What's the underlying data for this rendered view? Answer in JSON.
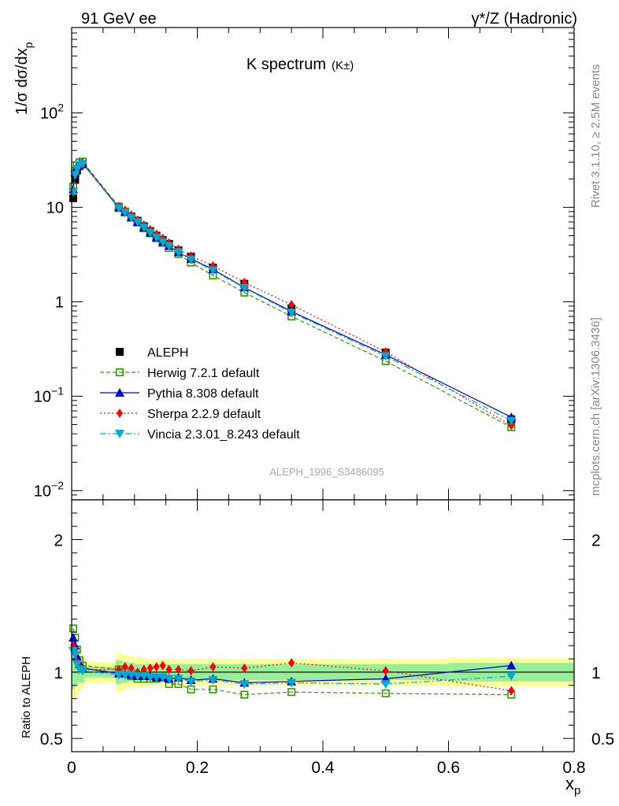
{
  "header": {
    "left": "91 GeV ee",
    "right": "γ*/Z (Hadronic)"
  },
  "side_text": {
    "top": "Rivet 3.1.10, ≥ 2.5M events",
    "bottom": "mcplots.cern.ch [arXiv:1306.3436]"
  },
  "analysis_label": "ALEPH_1996_S3486095",
  "chart_data": [
    {
      "type": "scatter",
      "title": "K spectrum",
      "title_suffix": "(K±)",
      "ylabel": "1/σ dσ/dx",
      "ylabel_sub": "p",
      "yscale": "log",
      "ylim": [
        0.008,
        800
      ],
      "xlim": [
        0,
        0.8
      ],
      "y_tick_labels": [
        {
          "value": 100,
          "base": "10",
          "exp": "2"
        },
        {
          "value": 10,
          "base": "10",
          "exp": ""
        },
        {
          "value": 1,
          "base": "1",
          "exp": ""
        },
        {
          "value": 0.1,
          "base": "10",
          "exp": "−1"
        },
        {
          "value": 0.01,
          "base": "10",
          "exp": "−2"
        }
      ],
      "legend_position": "bottom-left",
      "series": [
        {
          "name": "ALEPH",
          "color": "#000000",
          "marker": "square",
          "dash": "none",
          "x": [
            0.0025,
            0.0055,
            0.0085,
            0.0125,
            0.0175,
            0.075,
            0.085,
            0.095,
            0.105,
            0.115,
            0.125,
            0.135,
            0.145,
            0.155,
            0.17,
            0.19,
            0.225,
            0.275,
            0.35,
            0.5,
            0.7
          ],
          "y": [
            12.5,
            19.5,
            24.5,
            27.5,
            28.5,
            10.0,
            9.0,
            8.0,
            7.2,
            6.3,
            5.6,
            5.0,
            4.5,
            4.1,
            3.5,
            3.0,
            2.3,
            1.55,
            0.85,
            0.29,
            0.057
          ]
        },
        {
          "name": "Herwig 7.2.1 default",
          "color": "#339900",
          "marker": "open-square",
          "dash": "5,3",
          "x": [
            0.0025,
            0.0055,
            0.0085,
            0.0125,
            0.0175,
            0.075,
            0.085,
            0.095,
            0.105,
            0.115,
            0.125,
            0.135,
            0.145,
            0.155,
            0.17,
            0.19,
            0.225,
            0.275,
            0.35,
            0.5,
            0.7
          ],
          "y": [
            16.5,
            24.5,
            28.0,
            30.0,
            30.5,
            10.2,
            9.0,
            7.8,
            6.9,
            6.0,
            5.3,
            4.7,
            4.2,
            3.7,
            3.2,
            2.6,
            1.9,
            1.25,
            0.7,
            0.235,
            0.047
          ]
        },
        {
          "name": "Pythia 8.308 default",
          "color": "#0000cc",
          "marker": "triangle-up",
          "dash": "none",
          "x": [
            0.0025,
            0.0055,
            0.0085,
            0.0125,
            0.0175,
            0.075,
            0.085,
            0.095,
            0.105,
            0.115,
            0.125,
            0.135,
            0.145,
            0.155,
            0.17,
            0.19,
            0.225,
            0.275,
            0.35,
            0.5,
            0.7
          ],
          "y": [
            15.5,
            23.5,
            27.0,
            29.0,
            29.5,
            9.9,
            8.9,
            7.8,
            7.0,
            6.1,
            5.4,
            4.8,
            4.3,
            3.9,
            3.35,
            2.85,
            2.2,
            1.42,
            0.79,
            0.275,
            0.06
          ]
        },
        {
          "name": "Sherpa 2.2.9 default",
          "color": "#ff0000",
          "marker": "diamond",
          "dash": "2,3",
          "x": [
            0.0025,
            0.0055,
            0.0085,
            0.0125,
            0.0175,
            0.075,
            0.085,
            0.095,
            0.105,
            0.115,
            0.125,
            0.135,
            0.145,
            0.155,
            0.17,
            0.19,
            0.225,
            0.275,
            0.35,
            0.5,
            0.7
          ],
          "y": [
            15.0,
            22.5,
            26.0,
            28.5,
            29.0,
            10.2,
            9.3,
            8.3,
            7.3,
            6.5,
            5.8,
            5.2,
            4.7,
            4.2,
            3.6,
            3.05,
            2.4,
            1.6,
            0.93,
            0.295,
            0.049
          ]
        },
        {
          "name": "Vincia 2.3.01_8.243 default",
          "color": "#00aacc",
          "marker": "triangle-down",
          "dash": "8,3,2,3",
          "x": [
            0.0025,
            0.0055,
            0.0085,
            0.0125,
            0.0175,
            0.075,
            0.085,
            0.095,
            0.105,
            0.115,
            0.125,
            0.135,
            0.145,
            0.155,
            0.17,
            0.19,
            0.225,
            0.275,
            0.35,
            0.5,
            0.7
          ],
          "y": [
            14.5,
            22.0,
            25.5,
            28.0,
            28.8,
            9.8,
            8.8,
            7.8,
            7.0,
            6.1,
            5.4,
            4.8,
            4.3,
            3.9,
            3.35,
            2.8,
            2.15,
            1.4,
            0.77,
            0.265,
            0.055
          ]
        }
      ]
    },
    {
      "type": "line",
      "ylabel": "Ratio to ALEPH",
      "xlabel": "x",
      "xlabel_sub": "p",
      "ylim": [
        0.4,
        2.3
      ],
      "xlim": [
        0,
        0.8
      ],
      "x_ticks": [
        0,
        0.2,
        0.4,
        0.6,
        0.8
      ],
      "x_tick_labels": [
        "0",
        "0.2",
        "0.4",
        "0.6",
        "0.8"
      ],
      "y_ticks": [
        0.5,
        1,
        2
      ],
      "y_tick_labels": [
        "0.5",
        "1",
        "2"
      ],
      "bands": {
        "edges": [
          0.0,
          0.005,
          0.01,
          0.015,
          0.02,
          0.07,
          0.08,
          0.09,
          0.1,
          0.12,
          0.15,
          0.2,
          0.3,
          0.4,
          0.6,
          0.8
        ],
        "inner": [
          [
            0.87,
            1.13
          ],
          [
            0.9,
            1.1
          ],
          [
            0.92,
            1.08
          ],
          [
            0.92,
            1.08
          ],
          [
            0.96,
            1.04
          ],
          [
            0.91,
            1.09
          ],
          [
            0.92,
            1.08
          ],
          [
            0.93,
            1.07
          ],
          [
            0.94,
            1.06
          ],
          [
            0.94,
            1.06
          ],
          [
            0.94,
            1.06
          ],
          [
            0.94,
            1.06
          ],
          [
            0.94,
            1.06
          ],
          [
            0.94,
            1.06
          ],
          [
            0.93,
            1.07
          ]
        ],
        "outer": [
          [
            0.8,
            1.2
          ],
          [
            0.82,
            1.18
          ],
          [
            0.86,
            1.14
          ],
          [
            0.88,
            1.12
          ],
          [
            0.92,
            1.08
          ],
          [
            0.85,
            1.15
          ],
          [
            0.87,
            1.13
          ],
          [
            0.88,
            1.12
          ],
          [
            0.89,
            1.11
          ],
          [
            0.9,
            1.1
          ],
          [
            0.9,
            1.1
          ],
          [
            0.9,
            1.1
          ],
          [
            0.9,
            1.1
          ],
          [
            0.9,
            1.1
          ],
          [
            0.89,
            1.11
          ]
        ]
      },
      "series": [
        {
          "name": "Herwig 7.2.1 default",
          "color": "#339900",
          "marker": "open-square",
          "dash": "5,3",
          "x": [
            0.0025,
            0.0055,
            0.0085,
            0.0125,
            0.0175,
            0.075,
            0.085,
            0.095,
            0.105,
            0.115,
            0.125,
            0.135,
            0.145,
            0.155,
            0.17,
            0.19,
            0.225,
            0.275,
            0.35,
            0.5,
            0.7
          ],
          "y": [
            1.33,
            1.26,
            1.17,
            1.09,
            1.05,
            1.02,
            1.0,
            0.97,
            0.95,
            0.95,
            0.95,
            0.95,
            0.96,
            0.91,
            0.91,
            0.87,
            0.87,
            0.83,
            0.85,
            0.84,
            0.83
          ]
        },
        {
          "name": "Pythia 8.308 default",
          "color": "#0000cc",
          "marker": "triangle-up",
          "dash": "none",
          "x": [
            0.0025,
            0.0055,
            0.0085,
            0.0125,
            0.0175,
            0.075,
            0.085,
            0.095,
            0.105,
            0.115,
            0.125,
            0.135,
            0.145,
            0.155,
            0.17,
            0.19,
            0.225,
            0.275,
            0.35,
            0.5,
            0.7
          ],
          "y": [
            1.26,
            1.2,
            1.12,
            1.06,
            1.03,
            0.99,
            0.99,
            0.98,
            0.97,
            0.97,
            0.97,
            0.96,
            0.96,
            0.95,
            0.96,
            0.94,
            0.95,
            0.92,
            0.93,
            0.95,
            1.05
          ]
        },
        {
          "name": "Sherpa 2.2.9 default",
          "color": "#ff0000",
          "marker": "diamond",
          "dash": "2,3",
          "x": [
            0.0025,
            0.0055,
            0.0085,
            0.0125,
            0.0175,
            0.075,
            0.085,
            0.095,
            0.105,
            0.115,
            0.125,
            0.135,
            0.145,
            0.155,
            0.17,
            0.19,
            0.225,
            0.275,
            0.35,
            0.5,
            0.7
          ],
          "y": [
            1.2,
            1.15,
            1.08,
            1.04,
            1.02,
            1.02,
            1.04,
            1.03,
            1.0,
            1.02,
            1.03,
            1.04,
            1.05,
            1.02,
            1.02,
            1.01,
            1.04,
            1.03,
            1.07,
            1.01,
            0.86
          ]
        },
        {
          "name": "Vincia 2.3.01_8.243 default",
          "color": "#00aacc",
          "marker": "triangle-down",
          "dash": "8,3,2,3",
          "x": [
            0.0025,
            0.0055,
            0.0085,
            0.0125,
            0.0175,
            0.075,
            0.085,
            0.095,
            0.105,
            0.115,
            0.125,
            0.135,
            0.145,
            0.155,
            0.17,
            0.19,
            0.225,
            0.275,
            0.35,
            0.5,
            0.7
          ],
          "y": [
            1.16,
            1.13,
            1.06,
            1.02,
            1.01,
            0.98,
            0.98,
            0.98,
            0.97,
            0.97,
            0.96,
            0.96,
            0.96,
            0.95,
            0.95,
            0.93,
            0.94,
            0.91,
            0.92,
            0.91,
            0.97
          ]
        }
      ]
    }
  ]
}
